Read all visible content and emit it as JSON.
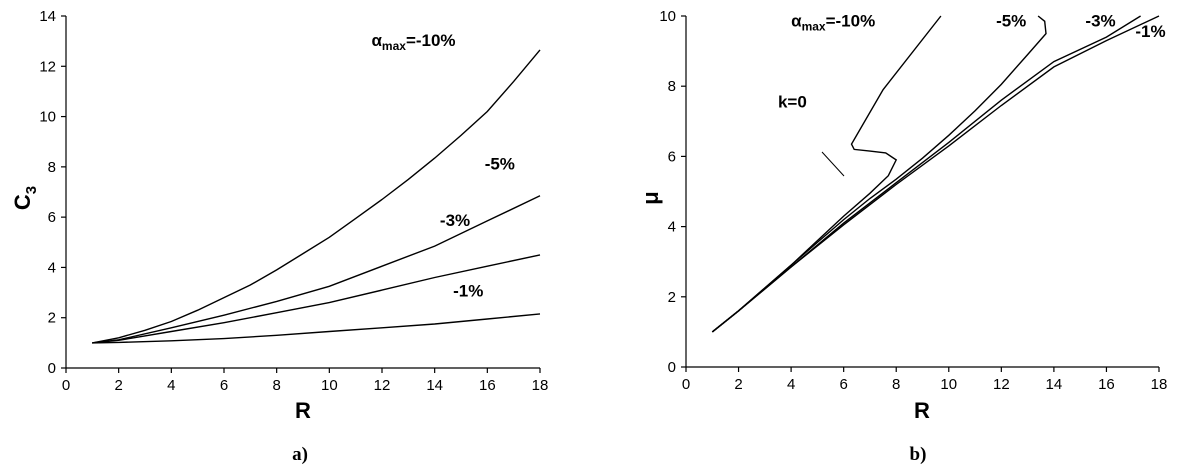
{
  "chart_data": [
    {
      "type": "line",
      "caption": "a)",
      "xlabel": "R",
      "ylabel": "C",
      "ylabel_sub": "3",
      "xlim": [
        0,
        18
      ],
      "ylim": [
        0,
        14
      ],
      "xticks": [
        "0",
        "2",
        "4",
        "6",
        "8",
        "10",
        "12",
        "14",
        "16",
        "18"
      ],
      "yticks": [
        "0",
        "2",
        "4",
        "6",
        "8",
        "10",
        "12",
        "14"
      ],
      "grid": false,
      "series": [
        {
          "name": "α_max=-10%",
          "points": [
            [
              1,
              1
            ],
            [
              2,
              1.2
            ],
            [
              3,
              1.5
            ],
            [
              4,
              1.85
            ],
            [
              5,
              2.3
            ],
            [
              6,
              2.8
            ],
            [
              7,
              3.3
            ],
            [
              8,
              3.9
            ],
            [
              9,
              4.55
            ],
            [
              10,
              5.2
            ],
            [
              11,
              5.95
            ],
            [
              12,
              6.7
            ],
            [
              13,
              7.5
            ],
            [
              14,
              8.35
            ],
            [
              15,
              9.25
            ],
            [
              16,
              10.2
            ],
            [
              17,
              11.4
            ],
            [
              18,
              12.65
            ]
          ]
        },
        {
          "name": "-5%",
          "points": [
            [
              1,
              1
            ],
            [
              2,
              1.12
            ],
            [
              4,
              1.6
            ],
            [
              6,
              2.1
            ],
            [
              8,
              2.65
            ],
            [
              10,
              3.25
            ],
            [
              12,
              4.05
            ],
            [
              14,
              4.85
            ],
            [
              16,
              5.85
            ],
            [
              18,
              6.85
            ]
          ]
        },
        {
          "name": "-3%",
          "points": [
            [
              1,
              1
            ],
            [
              2,
              1.1
            ],
            [
              4,
              1.45
            ],
            [
              6,
              1.8
            ],
            [
              8,
              2.2
            ],
            [
              10,
              2.6
            ],
            [
              12,
              3.1
            ],
            [
              14,
              3.6
            ],
            [
              16,
              4.05
            ],
            [
              18,
              4.5
            ]
          ]
        },
        {
          "name": "-1%",
          "points": [
            [
              1,
              1
            ],
            [
              2,
              1.02
            ],
            [
              4,
              1.08
            ],
            [
              6,
              1.17
            ],
            [
              8,
              1.3
            ],
            [
              10,
              1.45
            ],
            [
              12,
              1.6
            ],
            [
              14,
              1.75
            ],
            [
              16,
              1.95
            ],
            [
              18,
              2.15
            ]
          ]
        }
      ],
      "labels": [
        {
          "text": "-10%",
          "prefix": "α",
          "prefix_sub": "max",
          "x": 11.6,
          "y": 12.8
        },
        {
          "text": "-5%",
          "x": 15.9,
          "y": 7.9
        },
        {
          "text": "-3%",
          "x": 14.2,
          "y": 5.65
        },
        {
          "text": "-1%",
          "x": 14.7,
          "y": 2.85
        }
      ]
    },
    {
      "type": "line",
      "caption": "b)",
      "xlabel": "R",
      "ylabel": "μ",
      "xlim": [
        0,
        18
      ],
      "ylim": [
        0,
        10
      ],
      "xticks": [
        "0",
        "2",
        "4",
        "6",
        "8",
        "10",
        "12",
        "14",
        "16",
        "18"
      ],
      "yticks": [
        "0",
        "2",
        "4",
        "6",
        "8",
        "10"
      ],
      "grid": false,
      "series": [
        {
          "name": "α_max=-10%",
          "points": [
            [
              1,
              1
            ],
            [
              2,
              1.6
            ],
            [
              3,
              2.25
            ],
            [
              4,
              2.9
            ],
            [
              5,
              3.6
            ],
            [
              6,
              4.3
            ],
            [
              7,
              4.95
            ],
            [
              7.7,
              5.45
            ],
            [
              8.0,
              5.9
            ],
            [
              7.6,
              6.1
            ],
            [
              7.0,
              6.15
            ],
            [
              6.4,
              6.2
            ],
            [
              6.3,
              6.35
            ],
            [
              7.5,
              7.9
            ],
            [
              9.7,
              10
            ]
          ]
        },
        {
          "name": "-5%",
          "points": [
            [
              1,
              1
            ],
            [
              2,
              1.6
            ],
            [
              3,
              2.25
            ],
            [
              4,
              2.9
            ],
            [
              5,
              3.55
            ],
            [
              6,
              4.2
            ],
            [
              7,
              4.8
            ],
            [
              8,
              5.35
            ],
            [
              9,
              5.95
            ],
            [
              10,
              6.6
            ],
            [
              11,
              7.3
            ],
            [
              12,
              8.05
            ],
            [
              13,
              8.9
            ],
            [
              13.7,
              9.5
            ],
            [
              13.65,
              9.85
            ],
            [
              13.4,
              10
            ]
          ]
        },
        {
          "name": "-3%",
          "points": [
            [
              1,
              1
            ],
            [
              2,
              1.6
            ],
            [
              4,
              2.85
            ],
            [
              6,
              4.1
            ],
            [
              8,
              5.25
            ],
            [
              10,
              6.4
            ],
            [
              12,
              7.6
            ],
            [
              14,
              8.7
            ],
            [
              16,
              9.4
            ],
            [
              17.3,
              10
            ]
          ]
        },
        {
          "name": "-1%",
          "points": [
            [
              1,
              1
            ],
            [
              2,
              1.6
            ],
            [
              4,
              2.85
            ],
            [
              6,
              4.05
            ],
            [
              8,
              5.2
            ],
            [
              10,
              6.3
            ],
            [
              12,
              7.45
            ],
            [
              14,
              8.55
            ],
            [
              16,
              9.3
            ],
            [
              18,
              10
            ]
          ]
        }
      ],
      "labels": [
        {
          "text": "-10%",
          "prefix": "α",
          "prefix_sub": "max",
          "x": 4.0,
          "y": 9.7
        },
        {
          "text": "-5%",
          "x": 11.8,
          "y": 9.7
        },
        {
          "text": "-3%",
          "x": 15.2,
          "y": 9.7
        },
        {
          "text": "-1%",
          "x": 17.1,
          "y": 9.4
        },
        {
          "text": "k=0",
          "x": 3.5,
          "y": 7.4
        }
      ]
    }
  ]
}
